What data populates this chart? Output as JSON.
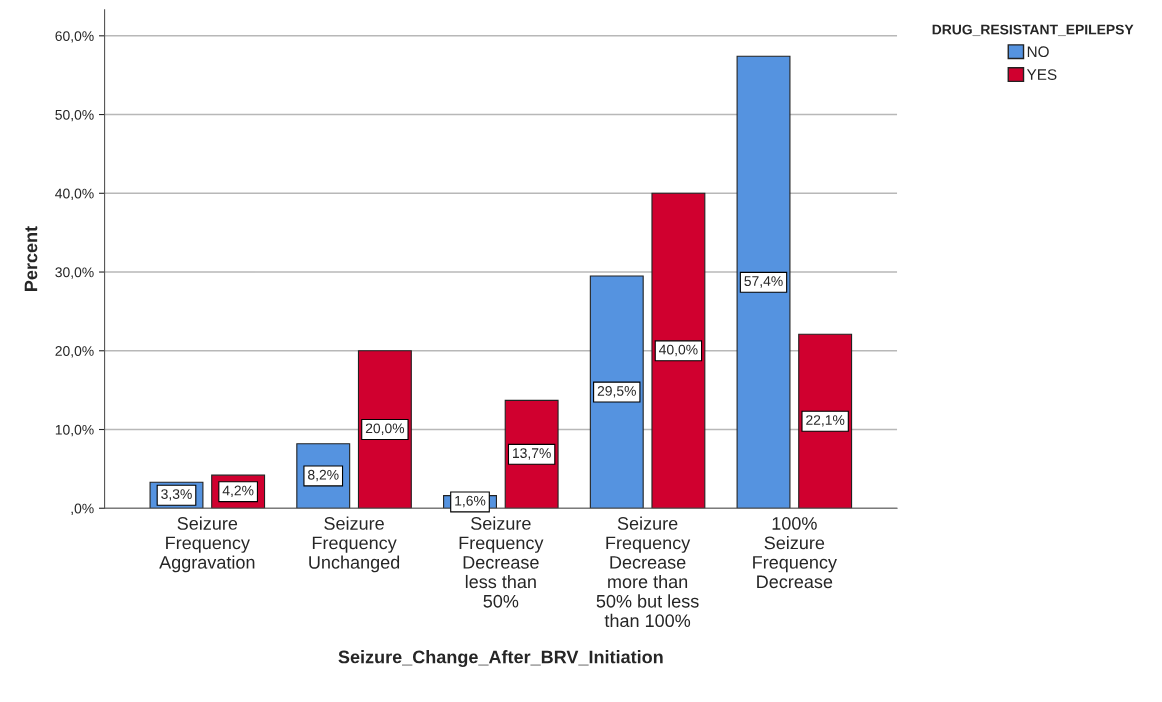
{
  "chart_data": {
    "type": "bar",
    "categories": [
      "Seizure\nFrequency\nAggravation",
      "Seizure\nFrequency\nUnchanged",
      "Seizure\nFrequency\nDecrease\nless than\n50%",
      "Seizure\nFrequency\nDecrease\nmore than\n50% but less\nthan 100%",
      "100%\nSeizure\nFrequency\nDecrease"
    ],
    "series": [
      {
        "name": "NO",
        "color": "#5593e0",
        "values": [
          3.3,
          8.2,
          1.6,
          29.5,
          57.4
        ],
        "value_labels": [
          "3,3%",
          "8,2%",
          "1,6%",
          "29,5%",
          "57,4%"
        ]
      },
      {
        "name": "YES",
        "color": "#d0002f",
        "values": [
          4.2,
          20.0,
          13.7,
          40.0,
          22.1
        ],
        "value_labels": [
          "4,2%",
          "20,0%",
          "13,7%",
          "40,0%",
          "22,1%"
        ]
      }
    ],
    "xlabel": "Seizure_Change_After_BRV_Initiation",
    "ylabel": "Percent",
    "legend_title": "DRUG_RESISTANT_EPILEPSY",
    "legend": "top right",
    "ylim": [
      0,
      63.3
    ],
    "yticks": [
      {
        "value": 0,
        "label": ",0%"
      },
      {
        "value": 10,
        "label": "10,0%"
      },
      {
        "value": 20,
        "label": "20,0%"
      },
      {
        "value": 30,
        "label": "30,0%"
      },
      {
        "value": 40,
        "label": "40,0%"
      },
      {
        "value": 50,
        "label": "50,0%"
      },
      {
        "value": 60,
        "label": "60,0%"
      }
    ],
    "grid": "y"
  }
}
